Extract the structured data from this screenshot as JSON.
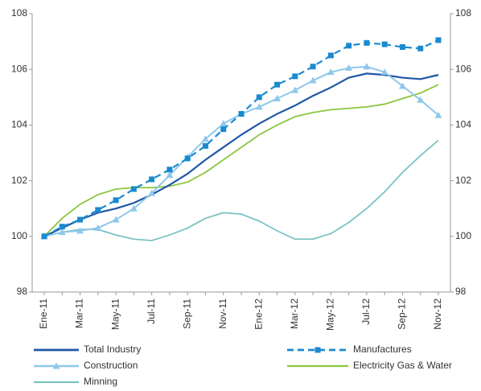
{
  "chart_data": {
    "type": "line",
    "categories": [
      "Ene-11",
      null,
      "Mar-11",
      null,
      "May-11",
      null,
      "Jul-11",
      null,
      "Sep-11",
      null,
      "Nov-11",
      null,
      "Ene-12",
      null,
      "Mar-12",
      null,
      "May-12",
      null,
      "Jul-12",
      null,
      "Sep-12",
      null,
      "Nov-12"
    ],
    "series": [
      {
        "name": "Total Industry",
        "color": "#1f57a4",
        "values": [
          100.0,
          100.3,
          100.6,
          100.85,
          101.0,
          101.2,
          101.5,
          101.85,
          102.25,
          102.75,
          103.2,
          103.65,
          104.05,
          104.4,
          104.7,
          105.05,
          105.35,
          105.7,
          105.85,
          105.8,
          105.7,
          105.65,
          105.8
        ]
      },
      {
        "name": "Manufactures",
        "color": "#1a8ad0",
        "values": [
          100.0,
          100.35,
          100.6,
          100.95,
          101.3,
          101.7,
          102.05,
          102.4,
          102.8,
          103.25,
          103.85,
          104.4,
          105.0,
          105.45,
          105.75,
          106.1,
          106.5,
          106.85,
          106.95,
          106.9,
          106.8,
          106.75,
          107.05
        ]
      },
      {
        "name": "Construction",
        "color": "#8ec8ea",
        "values": [
          100.0,
          100.15,
          100.2,
          100.3,
          100.6,
          101.0,
          101.55,
          102.2,
          102.85,
          103.5,
          104.05,
          104.4,
          104.65,
          104.95,
          105.25,
          105.6,
          105.9,
          106.05,
          106.1,
          105.9,
          105.4,
          104.9,
          104.35
        ]
      },
      {
        "name": "Electricity Gas & Water",
        "color": "#8cc63f",
        "values": [
          100.0,
          100.65,
          101.15,
          101.5,
          101.7,
          101.75,
          101.75,
          101.8,
          101.95,
          102.3,
          102.75,
          103.2,
          103.65,
          104.0,
          104.3,
          104.45,
          104.55,
          104.6,
          104.65,
          104.75,
          104.95,
          105.15,
          105.45
        ]
      },
      {
        "name": "Minning",
        "color": "#7cc2c2",
        "values": [
          100.0,
          100.15,
          100.25,
          100.25,
          100.05,
          99.9,
          99.85,
          100.05,
          100.3,
          100.65,
          100.85,
          100.8,
          100.55,
          100.2,
          99.9,
          99.9,
          100.1,
          100.5,
          101.0,
          101.6,
          102.3,
          102.9,
          103.45
        ]
      }
    ],
    "ylim": [
      98,
      108
    ],
    "yticks": [
      98,
      100,
      102,
      104,
      106,
      108
    ],
    "y2lim": [
      98,
      108
    ],
    "y2ticks": [
      98,
      100,
      102,
      104,
      106,
      108
    ],
    "legend": "bottom"
  }
}
